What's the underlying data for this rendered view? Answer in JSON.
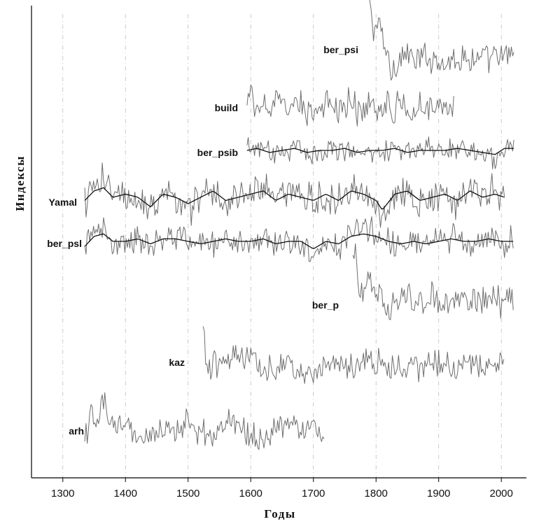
{
  "chart_data": {
    "type": "line",
    "xlabel": "Годы",
    "ylabel": "Индексы",
    "xlim": [
      1250,
      2040
    ],
    "xticks": [
      1300,
      1400,
      1500,
      1600,
      1700,
      1800,
      1900,
      2000
    ],
    "grid": "vertical dashed",
    "series": [
      {
        "name": "ber_psi",
        "start": 1788,
        "end": 2020,
        "points": [
          [
            1788,
            2.6
          ],
          [
            1795,
            1.7
          ],
          [
            1805,
            1.8
          ],
          [
            1815,
            1.2
          ],
          [
            1825,
            0.6
          ],
          [
            1835,
            0.9
          ],
          [
            1850,
            1.1
          ],
          [
            1860,
            0.8
          ],
          [
            1870,
            0.9
          ],
          [
            1880,
            1.0
          ],
          [
            1890,
            0.9
          ],
          [
            1900,
            1.0
          ],
          [
            1910,
            0.8
          ],
          [
            1920,
            0.9
          ],
          [
            1930,
            1.0
          ],
          [
            1940,
            0.9
          ],
          [
            1950,
            1.0
          ],
          [
            1960,
            0.9
          ],
          [
            1970,
            1.0
          ],
          [
            1980,
            0.8
          ],
          [
            1990,
            1.0
          ],
          [
            2000,
            0.9
          ],
          [
            2010,
            1.0
          ],
          [
            2020,
            1.1
          ]
        ]
      },
      {
        "name": "build",
        "start": 1594,
        "end": 1925,
        "points": [
          [
            1594,
            1.0
          ],
          [
            1600,
            1.3
          ],
          [
            1610,
            0.8
          ],
          [
            1620,
            1.2
          ],
          [
            1630,
            0.9
          ],
          [
            1640,
            1.1
          ],
          [
            1650,
            1.0
          ],
          [
            1660,
            0.8
          ],
          [
            1670,
            1.1
          ],
          [
            1680,
            1.0
          ],
          [
            1690,
            0.9
          ],
          [
            1700,
            1.0
          ],
          [
            1710,
            0.8
          ],
          [
            1720,
            1.0
          ],
          [
            1730,
            1.1
          ],
          [
            1740,
            0.9
          ],
          [
            1750,
            1.0
          ],
          [
            1760,
            1.2
          ],
          [
            1770,
            0.9
          ],
          [
            1780,
            1.0
          ],
          [
            1790,
            1.1
          ],
          [
            1800,
            0.9
          ],
          [
            1810,
            1.0
          ],
          [
            1820,
            1.1
          ],
          [
            1830,
            0.9
          ],
          [
            1840,
            1.1
          ],
          [
            1850,
            1.0
          ],
          [
            1860,
            0.9
          ],
          [
            1870,
            1.1
          ],
          [
            1880,
            1.0
          ],
          [
            1890,
            1.1
          ],
          [
            1900,
            0.9
          ],
          [
            1910,
            1.0
          ],
          [
            1920,
            1.1
          ],
          [
            1925,
            0.8
          ]
        ]
      },
      {
        "name": "ber_psib",
        "start": 1594,
        "end": 2020,
        "points": [
          [
            1594,
            1.0
          ],
          [
            1610,
            1.1
          ],
          [
            1630,
            0.9
          ],
          [
            1650,
            1.0
          ],
          [
            1670,
            1.1
          ],
          [
            1690,
            0.9
          ],
          [
            1710,
            1.0
          ],
          [
            1730,
            1.0
          ],
          [
            1750,
            1.1
          ],
          [
            1770,
            0.9
          ],
          [
            1790,
            1.0
          ],
          [
            1810,
            1.0
          ],
          [
            1830,
            1.1
          ],
          [
            1850,
            0.9
          ],
          [
            1870,
            1.0
          ],
          [
            1890,
            1.0
          ],
          [
            1910,
            1.0
          ],
          [
            1930,
            1.1
          ],
          [
            1950,
            1.0
          ],
          [
            1970,
            0.9
          ],
          [
            1990,
            0.8
          ],
          [
            2005,
            1.1
          ],
          [
            2020,
            1.1
          ]
        ]
      },
      {
        "name": "Yamal",
        "start": 1335,
        "end": 2005,
        "points": [
          [
            1335,
            0.9
          ],
          [
            1350,
            1.2
          ],
          [
            1365,
            1.3
          ],
          [
            1380,
            1.0
          ],
          [
            1400,
            1.1
          ],
          [
            1420,
            1.0
          ],
          [
            1440,
            0.7
          ],
          [
            1460,
            1.1
          ],
          [
            1480,
            1.0
          ],
          [
            1500,
            0.8
          ],
          [
            1520,
            1.0
          ],
          [
            1540,
            1.2
          ],
          [
            1560,
            0.9
          ],
          [
            1580,
            1.0
          ],
          [
            1600,
            1.1
          ],
          [
            1620,
            1.2
          ],
          [
            1640,
            0.9
          ],
          [
            1660,
            1.1
          ],
          [
            1680,
            1.0
          ],
          [
            1700,
            0.9
          ],
          [
            1720,
            1.1
          ],
          [
            1740,
            0.9
          ],
          [
            1760,
            1.2
          ],
          [
            1780,
            1.1
          ],
          [
            1800,
            0.9
          ],
          [
            1810,
            0.6
          ],
          [
            1830,
            1.1
          ],
          [
            1850,
            1.2
          ],
          [
            1870,
            0.9
          ],
          [
            1890,
            1.0
          ],
          [
            1910,
            1.1
          ],
          [
            1930,
            0.9
          ],
          [
            1950,
            1.2
          ],
          [
            1970,
            1.0
          ],
          [
            1990,
            1.1
          ],
          [
            2005,
            1.0
          ]
        ]
      },
      {
        "name": "ber_psl",
        "start": 1335,
        "end": 2020,
        "points": [
          [
            1335,
            0.8
          ],
          [
            1350,
            1.2
          ],
          [
            1365,
            1.3
          ],
          [
            1380,
            1.0
          ],
          [
            1400,
            1.0
          ],
          [
            1420,
            1.1
          ],
          [
            1440,
            0.9
          ],
          [
            1460,
            1.1
          ],
          [
            1480,
            1.1
          ],
          [
            1500,
            1.0
          ],
          [
            1520,
            0.9
          ],
          [
            1540,
            1.0
          ],
          [
            1560,
            1.1
          ],
          [
            1580,
            1.0
          ],
          [
            1600,
            1.0
          ],
          [
            1620,
            1.1
          ],
          [
            1640,
            0.9
          ],
          [
            1660,
            1.0
          ],
          [
            1680,
            1.0
          ],
          [
            1700,
            0.7
          ],
          [
            1720,
            1.0
          ],
          [
            1740,
            0.9
          ],
          [
            1760,
            1.2
          ],
          [
            1780,
            1.3
          ],
          [
            1800,
            1.2
          ],
          [
            1820,
            1.0
          ],
          [
            1840,
            0.9
          ],
          [
            1860,
            1.0
          ],
          [
            1880,
            0.9
          ],
          [
            1900,
            1.0
          ],
          [
            1920,
            1.1
          ],
          [
            1940,
            1.0
          ],
          [
            1960,
            1.0
          ],
          [
            1980,
            1.1
          ],
          [
            2000,
            1.0
          ],
          [
            2020,
            1.0
          ]
        ]
      },
      {
        "name": "ber_p",
        "start": 1763,
        "end": 2020,
        "points": [
          [
            1763,
            2.0
          ],
          [
            1768,
            2.4
          ],
          [
            1772,
            0.9
          ],
          [
            1780,
            1.4
          ],
          [
            1790,
            1.7
          ],
          [
            1800,
            1.3
          ],
          [
            1810,
            1.0
          ],
          [
            1820,
            0.8
          ],
          [
            1830,
            1.1
          ],
          [
            1840,
            1.0
          ],
          [
            1850,
            1.2
          ],
          [
            1860,
            0.9
          ],
          [
            1870,
            1.1
          ],
          [
            1880,
            1.0
          ],
          [
            1890,
            1.2
          ],
          [
            1900,
            1.0
          ],
          [
            1910,
            1.1
          ],
          [
            1920,
            1.0
          ],
          [
            1930,
            1.1
          ],
          [
            1940,
            1.0
          ],
          [
            1950,
            1.1
          ],
          [
            1960,
            1.0
          ],
          [
            1970,
            1.1
          ],
          [
            1980,
            1.0
          ],
          [
            1990,
            1.2
          ],
          [
            2000,
            1.0
          ],
          [
            2010,
            1.1
          ],
          [
            2020,
            1.0
          ]
        ]
      },
      {
        "name": "kaz",
        "start": 1524,
        "end": 2005,
        "points": [
          [
            1524,
            2.2
          ],
          [
            1530,
            0.8
          ],
          [
            1540,
            1.0
          ],
          [
            1560,
            1.1
          ],
          [
            1580,
            1.2
          ],
          [
            1600,
            1.1
          ],
          [
            1620,
            0.9
          ],
          [
            1640,
            1.0
          ],
          [
            1660,
            1.0
          ],
          [
            1680,
            0.9
          ],
          [
            1700,
            0.8
          ],
          [
            1720,
            1.0
          ],
          [
            1740,
            1.1
          ],
          [
            1760,
            1.0
          ],
          [
            1780,
            1.2
          ],
          [
            1800,
            1.1
          ],
          [
            1820,
            0.9
          ],
          [
            1840,
            1.0
          ],
          [
            1860,
            0.9
          ],
          [
            1880,
            1.0
          ],
          [
            1900,
            1.0
          ],
          [
            1920,
            0.9
          ],
          [
            1940,
            1.0
          ],
          [
            1960,
            1.1
          ],
          [
            1980,
            0.9
          ],
          [
            2000,
            1.0
          ],
          [
            2005,
            1.1
          ]
        ]
      },
      {
        "name": "arh",
        "start": 1335,
        "end": 1718,
        "points": [
          [
            1335,
            0.8
          ],
          [
            1345,
            1.4
          ],
          [
            1355,
            1.2
          ],
          [
            1365,
            1.7
          ],
          [
            1375,
            1.2
          ],
          [
            1385,
            1.0
          ],
          [
            1400,
            1.1
          ],
          [
            1420,
            0.9
          ],
          [
            1440,
            0.8
          ],
          [
            1460,
            1.0
          ],
          [
            1480,
            1.1
          ],
          [
            1500,
            1.2
          ],
          [
            1520,
            1.0
          ],
          [
            1540,
            0.9
          ],
          [
            1560,
            1.1
          ],
          [
            1570,
            1.3
          ],
          [
            1580,
            1.0
          ],
          [
            1600,
            0.9
          ],
          [
            1620,
            1.0
          ],
          [
            1640,
            1.0
          ],
          [
            1660,
            1.3
          ],
          [
            1680,
            1.1
          ],
          [
            1700,
            1.2
          ],
          [
            1710,
            1.0
          ],
          [
            1718,
            0.8
          ]
        ]
      }
    ],
    "smoothed_series": [
      "ber_psib",
      "Yamal",
      "ber_psl"
    ]
  }
}
